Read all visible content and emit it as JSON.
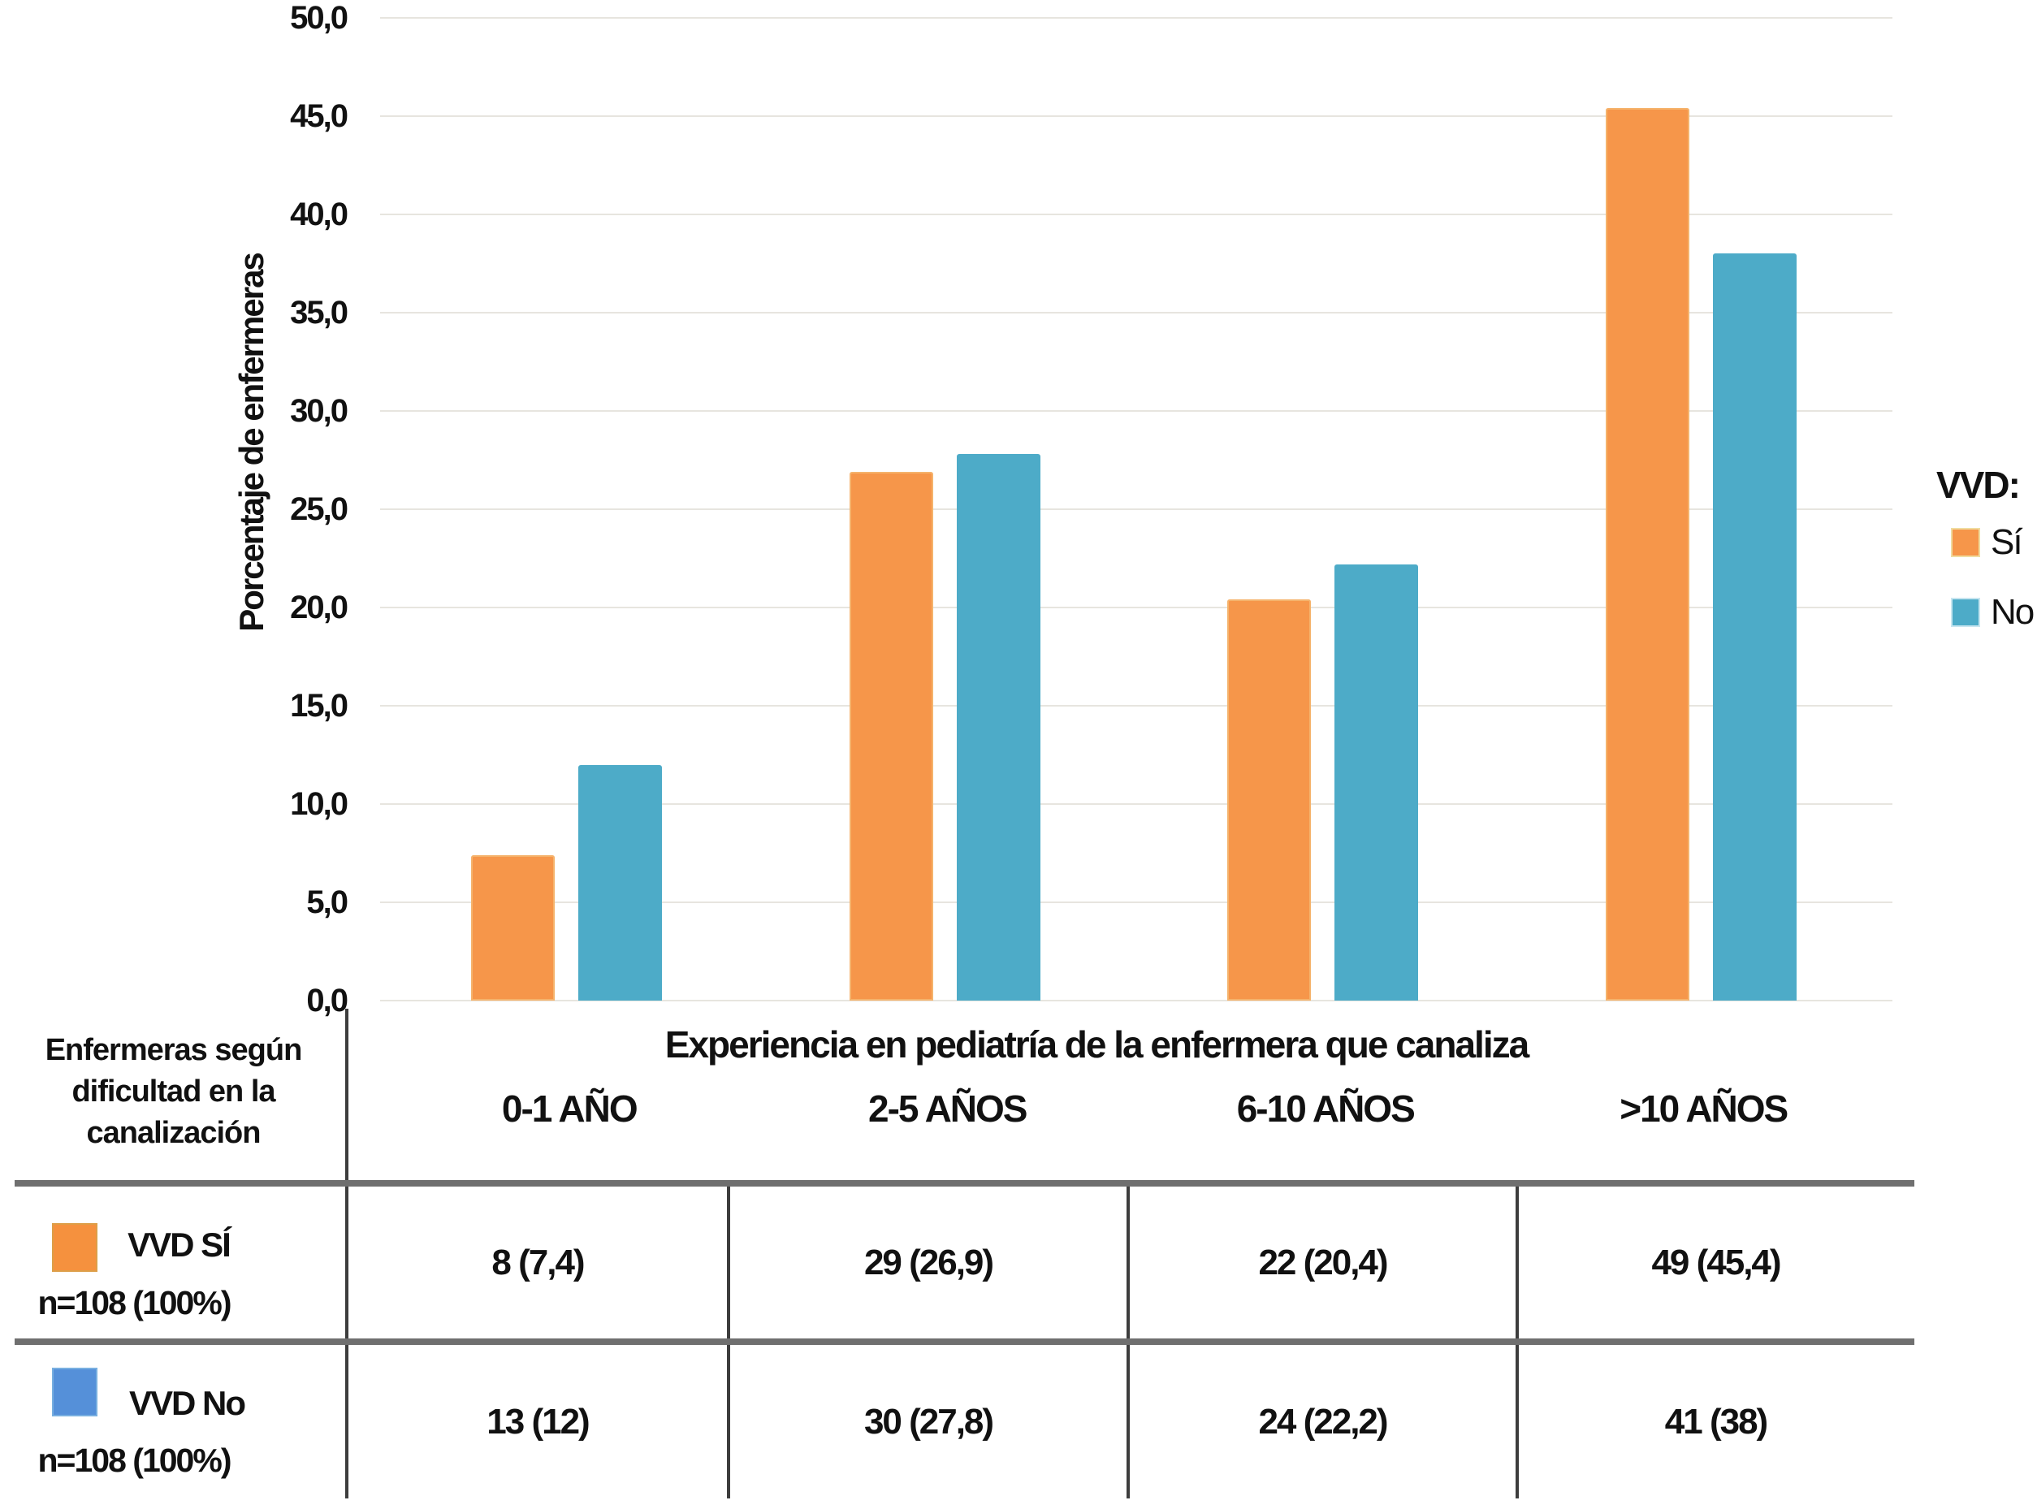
{
  "figure": {
    "background": "#ffffff"
  },
  "chart_data": {
    "type": "bar",
    "title": "",
    "xlabel": "Experiencia en pediatría de la enfermera que canaliza",
    "ylabel": "Porcentaje de enfermeras",
    "categories": [
      "0-1 AÑO",
      "2-5 AÑOS",
      "6-10 AÑOS",
      ">10 AÑOS"
    ],
    "series": [
      {
        "name": "Sí",
        "color": "#F6964A",
        "values": [
          7.4,
          26.9,
          20.4,
          45.4
        ]
      },
      {
        "name": "No",
        "color": "#4DABC8",
        "values": [
          12,
          27.8,
          22.2,
          38
        ]
      }
    ],
    "ylim": [
      0,
      50
    ],
    "ytick_step": 5,
    "ytick_labels": [
      "0,0",
      "5,0",
      "10,0",
      "15,0",
      "20,0",
      "25,0",
      "30,0",
      "35,0",
      "40,0",
      "45,0",
      "50,0"
    ],
    "grid": true,
    "legend_position": "right"
  },
  "legend": {
    "title": "VVD:",
    "items": [
      {
        "label": "Sí",
        "color": "#F6964A"
      },
      {
        "label": "No",
        "color": "#4DABC8"
      }
    ]
  },
  "table": {
    "header_lines": [
      "Enfermeras según",
      "dificultad en la",
      "canalización"
    ],
    "columns": [
      "0-1 AÑO",
      "2-5 AÑOS",
      "6-10 AÑOS",
      ">10 AÑOS"
    ],
    "rows": [
      {
        "swatch_color": "#F5913E",
        "label": "VVD SÍ",
        "sublabel": "n=108 (100%)",
        "values": [
          "8 (7,4)",
          "29 (26,9)",
          "22 (20,4)",
          "49 (45,4)"
        ]
      },
      {
        "swatch_color": "#5590D9",
        "label": "VVD No",
        "sublabel": "n=108 (100%)",
        "values": [
          "13 (12)",
          "30 (27,8)",
          "24 (22,2)",
          "41 (38)"
        ]
      }
    ]
  },
  "style": {
    "gridline_color": "#E7E5DF",
    "thick_line_color": "#6F6F6F",
    "divider_color": "#3D3D3D",
    "text_color": "#111111"
  }
}
